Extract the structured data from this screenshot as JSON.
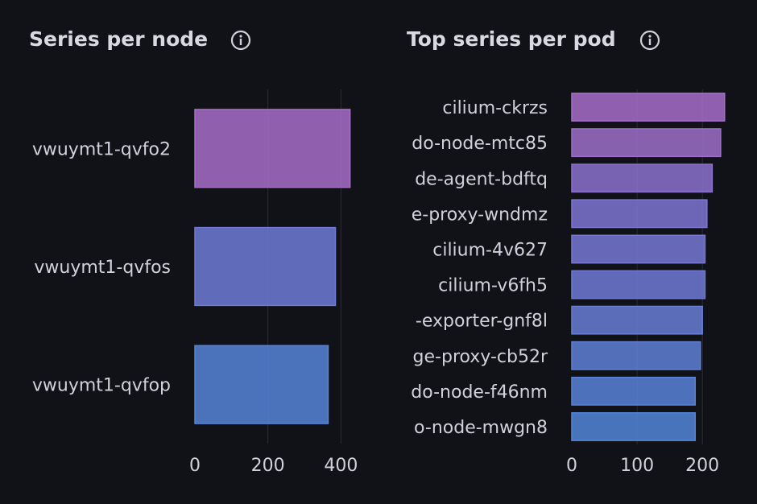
{
  "panels": [
    {
      "title": "Series per node",
      "icon": "info-icon",
      "chart_data": {
        "type": "bar",
        "orientation": "horizontal",
        "categories": [
          "vwuymt1-qvfo2",
          "vwuymt1-qvfos",
          "vwuymt1-qvfop"
        ],
        "values": [
          425,
          385,
          365
        ],
        "xlim": [
          0,
          450
        ],
        "xticks": [
          0,
          200,
          400
        ],
        "grid": true,
        "colors": [
          "#a76ec9",
          "#6f7bd6",
          "#5585d9"
        ]
      }
    },
    {
      "title": "Top series per pod",
      "icon": "info-icon",
      "chart_data": {
        "type": "bar",
        "orientation": "horizontal",
        "categories": [
          "cilium-ckrzs",
          "do-node-mtc85",
          "de-agent-bdftq",
          "e-proxy-wndmz",
          "cilium-4v627",
          "cilium-v6fh5",
          "-exporter-gnf8l",
          "ge-proxy-cb52r",
          "do-node-f46nm",
          "o-node-mwgn8"
        ],
        "values": [
          234,
          228,
          215,
          207,
          204,
          204,
          200,
          197,
          189,
          189
        ],
        "xlim": [
          0,
          238
        ],
        "xticks": [
          0,
          100,
          200
        ],
        "grid": true,
        "colors": [
          "#a76ec9",
          "#9c6ec9",
          "#8b72cf",
          "#7e76d3",
          "#7778d4",
          "#707ad5",
          "#687dd6",
          "#6080d7",
          "#5883d8",
          "#5286d9"
        ]
      }
    }
  ]
}
